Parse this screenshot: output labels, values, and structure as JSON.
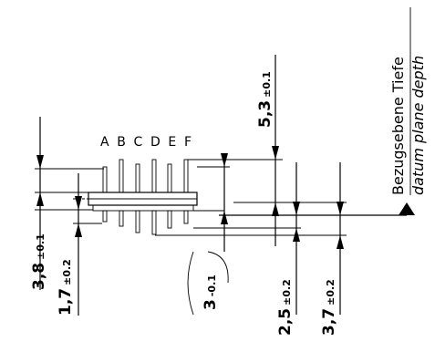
{
  "dimensions": {
    "d_3_8": {
      "value": "3,8",
      "tolerance": "±0.1"
    },
    "d_1_7": {
      "value": "1,7",
      "tolerance": "±0.2"
    },
    "d_3": {
      "value": "3",
      "tolerance": "-0.1"
    },
    "d_2_5": {
      "value": "2,5",
      "tolerance": "±0.2"
    },
    "d_3_7": {
      "value": "3,7",
      "tolerance": "±0.2"
    },
    "d_5_3": {
      "value": "5,3",
      "tolerance": "±0.1"
    }
  },
  "pin_labels": "A B C D E F",
  "reference": {
    "de": "Bezugsebene Tiefe",
    "en": "datum plane depth"
  }
}
